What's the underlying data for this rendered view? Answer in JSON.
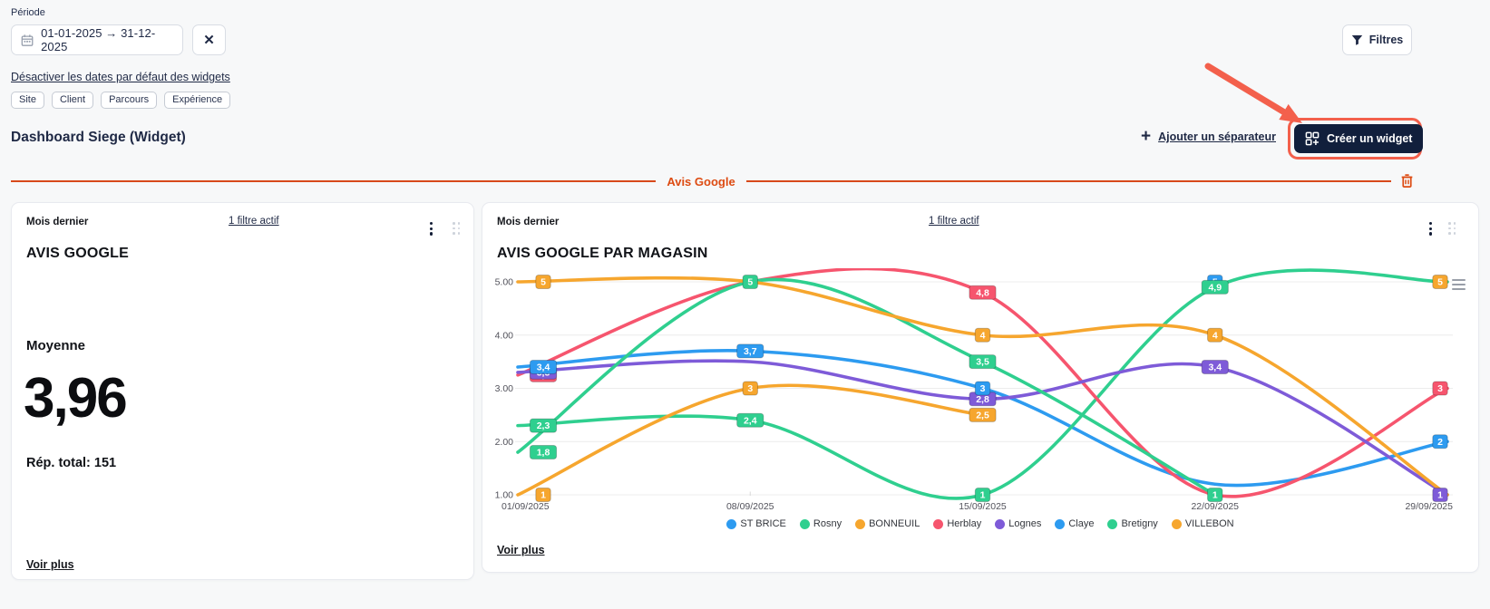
{
  "header": {
    "period_label": "Période",
    "date_range": "01-01-2025 → 31-12-2025",
    "clear_icon": "✕",
    "filters_button": "Filtres",
    "disable_default_dates_link": "Désactiver les dates par défaut des widgets",
    "tags": [
      "Site",
      "Client",
      "Parcours",
      "Expérience"
    ],
    "dashboard_title": "Dashboard Siege (Widget)",
    "add_separator_plus": "+",
    "add_separator_link": "Ajouter un séparateur",
    "create_widget_button": "Créer un widget"
  },
  "section": {
    "title": "Avis Google"
  },
  "left_widget": {
    "period": "Mois dernier",
    "filter_link": "1 filtre actif",
    "title": "AVIS GOOGLE",
    "metric_label": "Moyenne",
    "metric_value": "3,96",
    "total_label": "Rép. total: 151",
    "see_more": "Voir plus"
  },
  "right_widget": {
    "period": "Mois dernier",
    "filter_link": "1 filtre actif",
    "title": "AVIS GOOGLE PAR MAGASIN",
    "see_more": "Voir plus"
  },
  "colors": {
    "accent_orange": "#dd4b12",
    "annotation_red": "#f3604c",
    "dark_navy": "#111f3c",
    "grid": "#ececec"
  },
  "chart_data": {
    "type": "line",
    "title": "AVIS GOOGLE PAR MAGASIN",
    "categories": [
      "01/09/2025",
      "08/09/2025",
      "15/09/2025",
      "22/09/2025",
      "29/09/2025"
    ],
    "ylim": [
      1,
      5
    ],
    "yticks": [
      1,
      2,
      3,
      4,
      5
    ],
    "ytick_labels": [
      "1.00",
      "2.00",
      "3.00",
      "4.00",
      "5.00"
    ],
    "grid": true,
    "legend_position": "bottom",
    "series": [
      {
        "name": "ST BRICE",
        "color": "#2d9bf0",
        "values": [
          3.4,
          3.7,
          3.0,
          1.2,
          2.0
        ],
        "labels": [
          "3,4",
          "3,7",
          "3",
          null,
          "2"
        ]
      },
      {
        "name": "Rosny",
        "color": "#2fcf8f",
        "values": [
          2.3,
          2.4,
          1.0,
          4.9,
          5.0
        ],
        "labels": [
          "2,3",
          "2,4",
          "1",
          "4,9",
          null
        ]
      },
      {
        "name": "BONNEUIL",
        "color": "#f6a62e",
        "values": [
          1.0,
          3.0,
          2.5,
          null,
          5.0
        ],
        "labels": [
          "1",
          "3",
          "2,5",
          null,
          "5"
        ]
      },
      {
        "name": "Herblay",
        "color": "#f6556e",
        "values": [
          3.25,
          5.0,
          4.8,
          1.0,
          3.0
        ],
        "labels": [
          "3,3",
          null,
          "4,8",
          null,
          "3"
        ]
      },
      {
        "name": "Lognes",
        "color": "#7e5bd8",
        "values": [
          3.3,
          3.5,
          2.8,
          3.4,
          1.0
        ],
        "labels": [
          "3,3",
          null,
          "2,8",
          "3,4",
          "1"
        ]
      },
      {
        "name": "Claye",
        "color": "#2d9bf0",
        "values": [
          null,
          null,
          null,
          5.0,
          null
        ],
        "labels": [
          null,
          null,
          null,
          "5",
          null
        ]
      },
      {
        "name": "Bretigny",
        "color": "#2fcf8f",
        "values": [
          1.8,
          5.0,
          3.5,
          1.0,
          null
        ],
        "labels": [
          "1,8",
          "5",
          "3,5",
          "1",
          null
        ]
      },
      {
        "name": "VILLEBON",
        "color": "#f6a62e",
        "values": [
          5.0,
          5.0,
          4.0,
          4.0,
          1.0
        ],
        "labels": [
          "5",
          null,
          "4",
          "4",
          null
        ]
      }
    ],
    "label_draw_order": [
      3,
      4,
      5,
      0,
      1,
      6,
      2,
      7
    ]
  }
}
